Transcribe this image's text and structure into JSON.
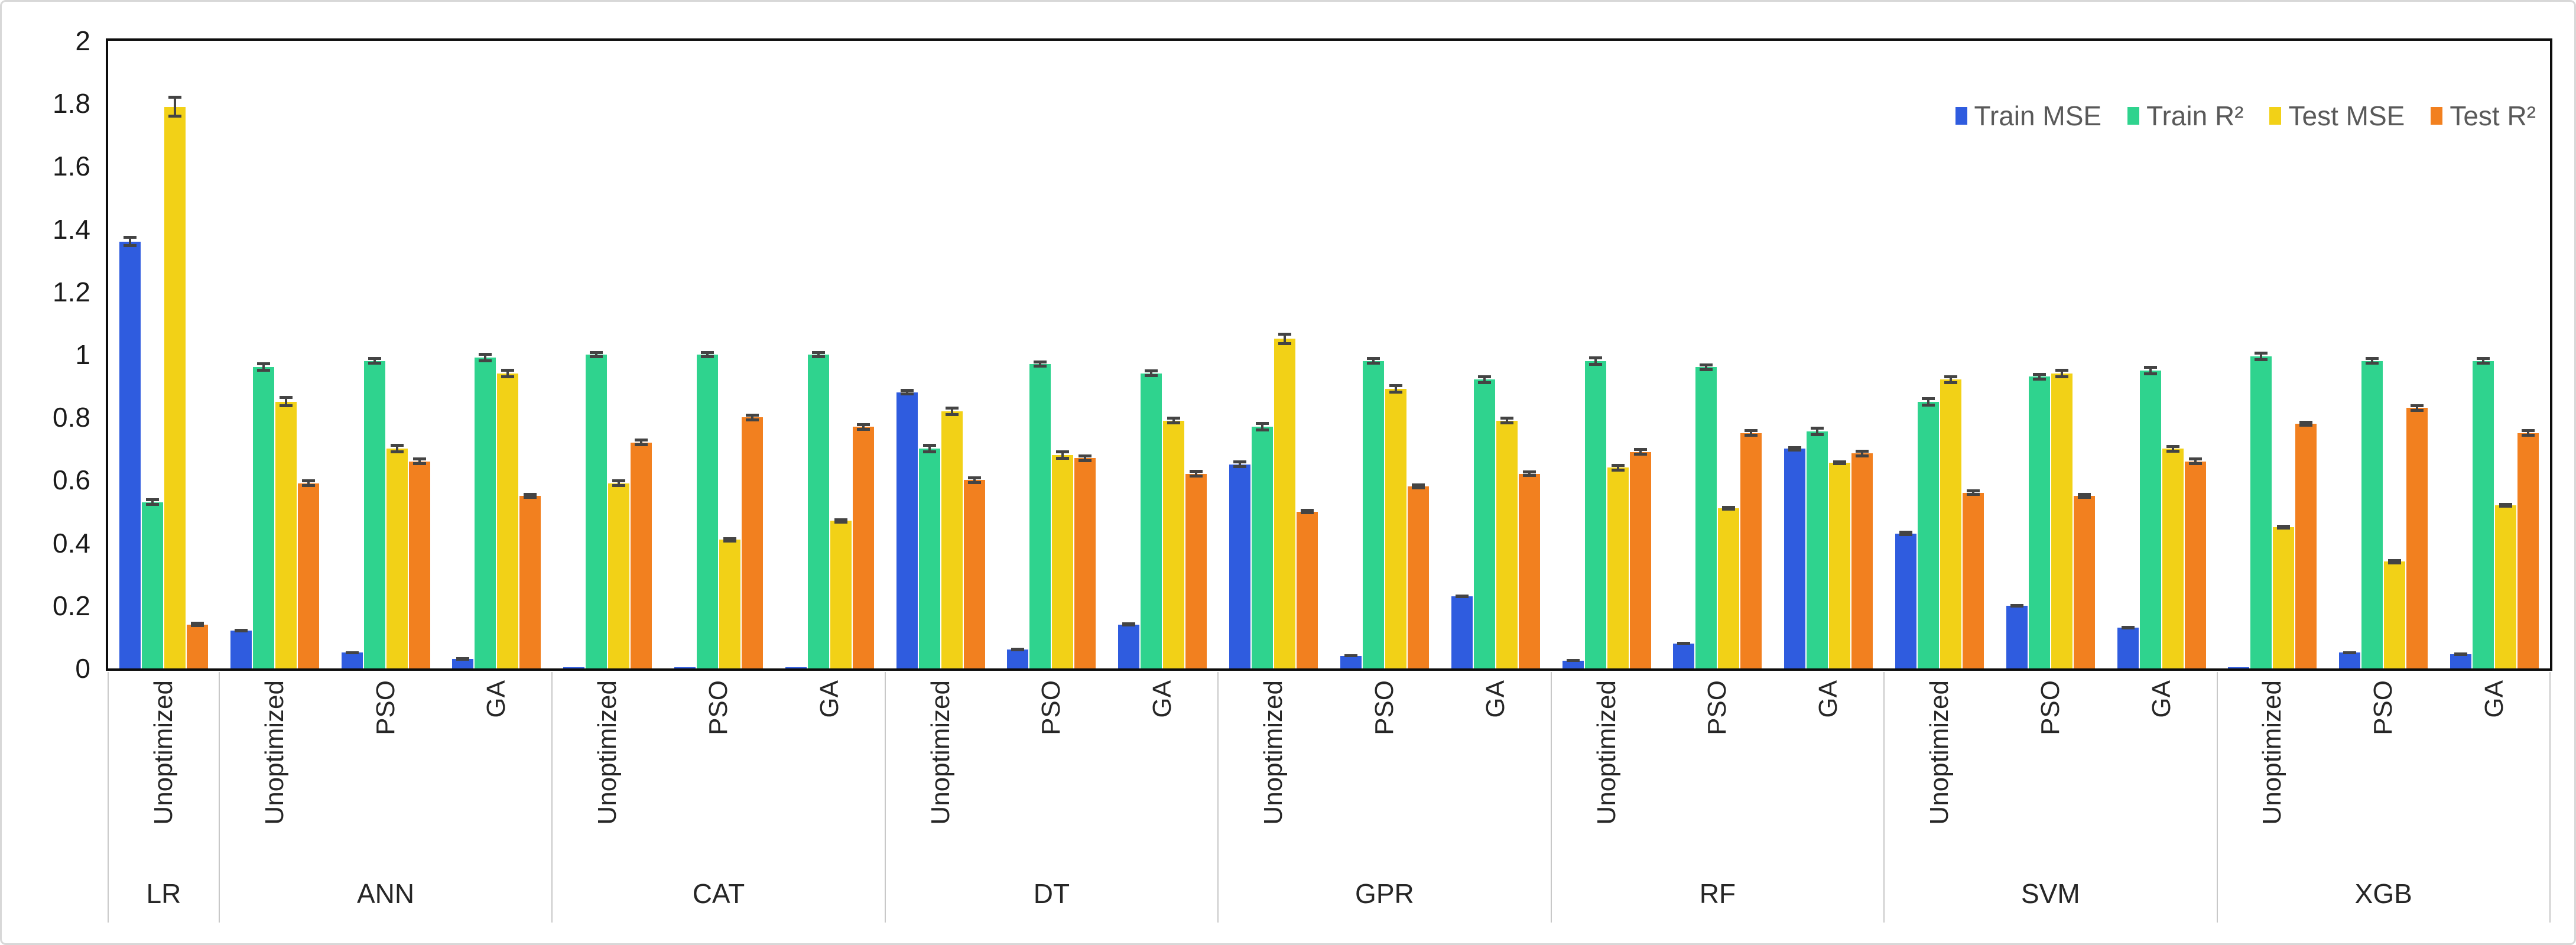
{
  "chart_data": {
    "type": "bar",
    "title": "",
    "xlabel": "",
    "ylabel": "",
    "ylim": [
      0,
      2
    ],
    "yticks": [
      {
        "value": 0,
        "label": "0"
      },
      {
        "value": 0.2,
        "label": "0.2"
      },
      {
        "value": 0.4,
        "label": "0.4"
      },
      {
        "value": 0.6,
        "label": "0.6"
      },
      {
        "value": 0.8,
        "label": "0.8"
      },
      {
        "value": 1,
        "label": "1"
      },
      {
        "value": 1.2,
        "label": "1.2"
      },
      {
        "value": 1.4,
        "label": "1.4"
      },
      {
        "value": 1.6,
        "label": "1.6"
      },
      {
        "value": 1.8,
        "label": "1.8"
      },
      {
        "value": 2,
        "label": "2"
      }
    ],
    "grid": false,
    "legend_position": "top-right",
    "error_bar_color": "#444444",
    "series": [
      {
        "name": "Train MSE",
        "color": "#2F5CDF"
      },
      {
        "name": "Train R²",
        "color": "#2FD38E"
      },
      {
        "name": "Test MSE",
        "color": "#F2D117"
      },
      {
        "name": "Test R²",
        "color": "#F2801F"
      }
    ],
    "groups": [
      {
        "name": "LR",
        "categories": [
          {
            "label": "Unoptimized",
            "values": [
              1.36,
              0.53,
              1.79,
              0.14
            ],
            "errors": [
              0.018,
              0.012,
              0.035,
              0.008
            ]
          }
        ]
      },
      {
        "name": "ANN",
        "categories": [
          {
            "label": "Unoptimized",
            "values": [
              0.12,
              0.96,
              0.85,
              0.59
            ],
            "errors": [
              0.006,
              0.015,
              0.018,
              0.012
            ]
          },
          {
            "label": "PSO",
            "values": [
              0.05,
              0.98,
              0.7,
              0.66
            ],
            "errors": [
              0.005,
              0.012,
              0.015,
              0.012
            ]
          },
          {
            "label": "GA",
            "values": [
              0.03,
              0.99,
              0.94,
              0.55
            ],
            "errors": [
              0.005,
              0.015,
              0.015,
              0.01
            ]
          }
        ]
      },
      {
        "name": "CAT",
        "categories": [
          {
            "label": "Unoptimized",
            "values": [
              0.004,
              1.0,
              0.59,
              0.72
            ],
            "errors": [
              0,
              0.012,
              0.012,
              0.012
            ]
          },
          {
            "label": "PSO",
            "values": [
              0.004,
              1.0,
              0.41,
              0.8
            ],
            "errors": [
              0,
              0.012,
              0.008,
              0.012
            ]
          },
          {
            "label": "GA",
            "values": [
              0.004,
              1.0,
              0.47,
              0.77
            ],
            "errors": [
              0,
              0.012,
              0.008,
              0.012
            ]
          }
        ]
      },
      {
        "name": "DT",
        "categories": [
          {
            "label": "Unoptimized",
            "values": [
              0.88,
              0.7,
              0.82,
              0.6
            ],
            "errors": [
              0.01,
              0.015,
              0.015,
              0.012
            ]
          },
          {
            "label": "PSO",
            "values": [
              0.06,
              0.97,
              0.68,
              0.67
            ],
            "errors": [
              0.006,
              0.012,
              0.015,
              0.012
            ]
          },
          {
            "label": "GA",
            "values": [
              0.14,
              0.94,
              0.79,
              0.62
            ],
            "errors": [
              0.006,
              0.012,
              0.012,
              0.012
            ]
          }
        ]
      },
      {
        "name": "GPR",
        "categories": [
          {
            "label": "Unoptimized",
            "values": [
              0.65,
              0.77,
              1.05,
              0.5
            ],
            "errors": [
              0.012,
              0.015,
              0.02,
              0.008
            ]
          },
          {
            "label": "PSO",
            "values": [
              0.04,
              0.98,
              0.89,
              0.58
            ],
            "errors": [
              0.005,
              0.012,
              0.015,
              0.01
            ]
          },
          {
            "label": "GA",
            "values": [
              0.23,
              0.92,
              0.79,
              0.62
            ],
            "errors": [
              0.006,
              0.015,
              0.012,
              0.01
            ]
          }
        ]
      },
      {
        "name": "RF",
        "categories": [
          {
            "label": "Unoptimized",
            "values": [
              0.025,
              0.98,
              0.64,
              0.69
            ],
            "errors": [
              0.005,
              0.015,
              0.012,
              0.012
            ]
          },
          {
            "label": "PSO",
            "values": [
              0.08,
              0.96,
              0.51,
              0.75
            ],
            "errors": [
              0.005,
              0.012,
              0.008,
              0.012
            ]
          },
          {
            "label": "GA",
            "values": [
              0.7,
              0.755,
              0.655,
              0.685
            ],
            "errors": [
              0.008,
              0.015,
              0.008,
              0.012
            ]
          }
        ]
      },
      {
        "name": "SVM",
        "categories": [
          {
            "label": "Unoptimized",
            "values": [
              0.43,
              0.85,
              0.92,
              0.56
            ],
            "errors": [
              0.008,
              0.015,
              0.015,
              0.01
            ]
          },
          {
            "label": "PSO",
            "values": [
              0.2,
              0.93,
              0.94,
              0.55
            ],
            "errors": [
              0.006,
              0.012,
              0.015,
              0.01
            ]
          },
          {
            "label": "GA",
            "values": [
              0.13,
              0.95,
              0.7,
              0.66
            ],
            "errors": [
              0.006,
              0.015,
              0.012,
              0.012
            ]
          }
        ]
      },
      {
        "name": "XGB",
        "categories": [
          {
            "label": "Unoptimized",
            "values": [
              0.004,
              0.995,
              0.45,
              0.78
            ],
            "errors": [
              0,
              0.015,
              0.008,
              0.01
            ]
          },
          {
            "label": "PSO",
            "values": [
              0.05,
              0.98,
              0.34,
              0.83
            ],
            "errors": [
              0.005,
              0.012,
              0.008,
              0.012
            ]
          },
          {
            "label": "GA",
            "values": [
              0.045,
              0.98,
              0.52,
              0.75
            ],
            "errors": [
              0.005,
              0.012,
              0.008,
              0.012
            ]
          }
        ]
      }
    ]
  }
}
